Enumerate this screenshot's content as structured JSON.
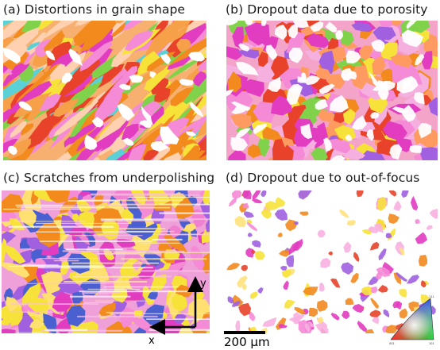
{
  "panels": [
    {
      "caption": "(a) Distortions in grain shape"
    },
    {
      "caption": "(b) Dropout data due to porosity"
    },
    {
      "caption": "(c) Scratches from underpolishing"
    },
    {
      "caption": "(d) Dropout due to out-of-focus"
    }
  ],
  "axes": {
    "x_label": "x",
    "y_label": "y"
  },
  "scalebar": {
    "label": "200 μm"
  },
  "colors": {
    "red": "#e8432a",
    "orange": "#f28a1e",
    "yellow": "#f7e23a",
    "green": "#7fd24a",
    "cyan": "#5ad1d6",
    "blue": "#4a5fd0",
    "magenta": "#e23cc0",
    "pink": "#f58ad6",
    "purple": "#a060e0",
    "white": "#ffffff"
  }
}
